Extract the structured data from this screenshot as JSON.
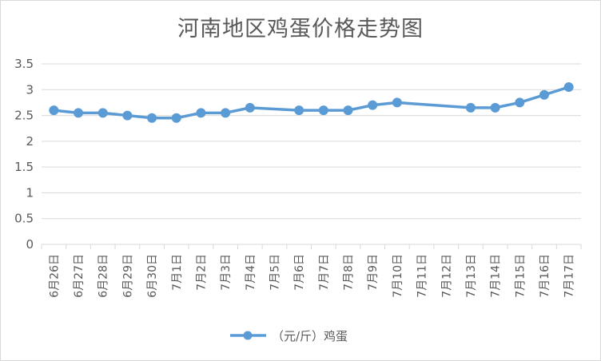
{
  "chart_data": {
    "type": "line",
    "title": "河南地区鸡蛋价格走势图",
    "categories": [
      "6月26日",
      "6月27日",
      "6月28日",
      "6月29日",
      "6月30日",
      "7月1日",
      "7月2日",
      "7月3日",
      "7月4日",
      "7月5日",
      "7月6日",
      "7月7日",
      "7月8日",
      "7月9日",
      "7月10日",
      "7月11日",
      "7月12日",
      "7月13日",
      "7月14日",
      "7月15日",
      "7月16日",
      "7月17日"
    ],
    "series": [
      {
        "name": "（元/斤）鸡蛋",
        "values": [
          2.6,
          2.55,
          2.55,
          2.5,
          2.45,
          2.45,
          2.55,
          2.55,
          2.65,
          null,
          2.6,
          2.6,
          2.6,
          2.7,
          2.75,
          null,
          null,
          2.65,
          2.65,
          2.75,
          2.9,
          3.05
        ],
        "color": "#5b9bd5"
      }
    ],
    "yticks": [
      "0",
      "0.5",
      "1",
      "1.5",
      "2",
      "2.5",
      "3",
      "3.5"
    ],
    "ylim": [
      0,
      3.5
    ],
    "grid": true,
    "legend_position": "bottom",
    "xlabel": "",
    "ylabel": ""
  }
}
